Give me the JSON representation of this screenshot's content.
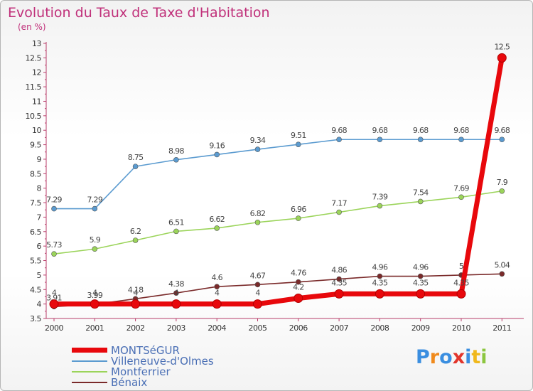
{
  "header": {
    "title": "Evolution du Taux de Taxe d'Habitation",
    "unit": "(en %)"
  },
  "logo": {
    "text": "Proxiti",
    "colors": [
      "#3a8ee0",
      "#f08a1c",
      "#3a8ee0",
      "#e2352b",
      "#3a8ee0",
      "#f0b81c",
      "#8cc63f"
    ]
  },
  "chart_data": {
    "type": "line",
    "title": "Evolution du Taux de Taxe d'Habitation",
    "ylabel": "(en %)",
    "xlabel": "",
    "x": [
      "2000",
      "2001",
      "2002",
      "2003",
      "2004",
      "2005",
      "2006",
      "2007",
      "2008",
      "2009",
      "2010",
      "2011"
    ],
    "ylim": [
      3.5,
      13
    ],
    "yticks": [
      "3.5",
      "4",
      "4.5",
      "5",
      "5.5",
      "6",
      "6.5",
      "7",
      "7.5",
      "8",
      "8.5",
      "9",
      "9.5",
      "10",
      "10.5",
      "11",
      "11.5",
      "12",
      "12.5",
      "13"
    ],
    "grid": false,
    "legend_position": "bottom-left",
    "series": [
      {
        "name": "MONTSéGUR",
        "color": "#e8080c",
        "emphasis": true,
        "values": [
          4,
          4,
          4,
          4,
          4,
          4,
          4.2,
          4.35,
          4.35,
          4.35,
          4.35,
          12.5
        ],
        "labels": [
          "4",
          "4",
          "4",
          "4",
          "4",
          "4",
          "4.2",
          "4.35",
          "4.35",
          "4.35",
          "4.35",
          "12.5"
        ]
      },
      {
        "name": "Villeneuve-d'Olmes",
        "color": "#5b9bd0",
        "values": [
          7.29,
          7.29,
          8.75,
          8.98,
          9.16,
          9.34,
          9.51,
          9.68,
          9.68,
          9.68,
          9.68,
          9.68
        ],
        "labels": [
          "7.29",
          "7.29",
          "8.75",
          "8.98",
          "9.16",
          "9.34",
          "9.51",
          "9.68",
          "9.68",
          "9.68",
          "9.68",
          "9.68"
        ]
      },
      {
        "name": "Montferrier",
        "color": "#9bd45a",
        "values": [
          5.73,
          5.9,
          6.2,
          6.51,
          6.62,
          6.82,
          6.96,
          7.17,
          7.39,
          7.54,
          7.69,
          7.9
        ],
        "labels": [
          "5.73",
          "5.9",
          "6.2",
          "6.51",
          "6.62",
          "6.82",
          "6.96",
          "7.17",
          "7.39",
          "7.54",
          "7.69",
          "7.9"
        ]
      },
      {
        "name": "Bénaix",
        "color": "#7a2a2a",
        "values": [
          3.91,
          3.99,
          4.18,
          4.38,
          4.6,
          4.67,
          4.76,
          4.86,
          4.96,
          4.96,
          5,
          5.04
        ],
        "labels": [
          "3.91",
          "3.99",
          "4.18",
          "4.38",
          "4.6",
          "4.67",
          "4.76",
          "4.86",
          "4.96",
          "4.96",
          "5",
          "5.04"
        ]
      }
    ]
  }
}
